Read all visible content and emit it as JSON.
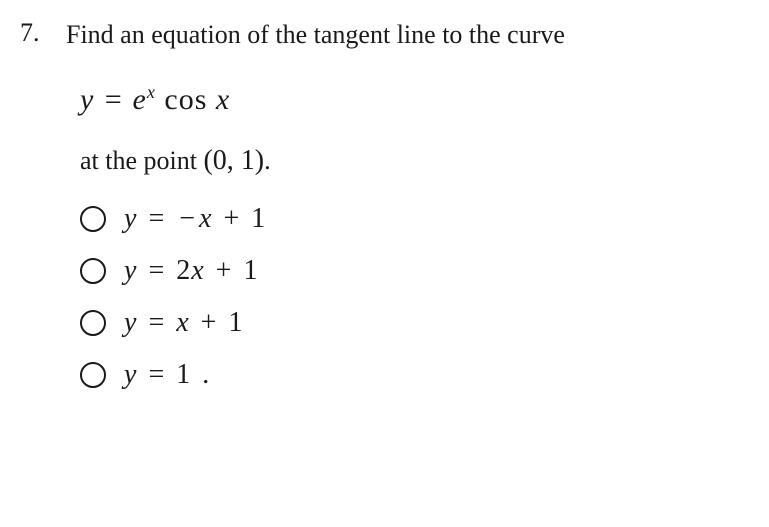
{
  "question": {
    "number": "7.",
    "prompt": "Find an equation of the tangent line to the curve",
    "equation_html": "y = e<span class=\"sup\">x</span> <span class=\"normal\">cos</span> x",
    "at_point_prefix": "at the point ",
    "point": "(0, 1)",
    "at_point_suffix": "."
  },
  "options": [
    {
      "html": "y <span class=\"op\">=</span> <span class=\"op\">&minus;</span>x <span class=\"op\">+</span> <span class=\"num\">1</span>"
    },
    {
      "html": "y <span class=\"op\">=</span> <span class=\"num\">2</span>x <span class=\"op\">+</span> <span class=\"num\">1</span>"
    },
    {
      "html": "y <span class=\"op\">=</span> x <span class=\"op\">+</span> <span class=\"num\">1</span>"
    },
    {
      "html": "y <span class=\"op\">=</span> <span class=\"num\">1</span> <span class=\"op\">.</span>"
    }
  ],
  "style": {
    "background": "#ffffff",
    "text_color": "#1a1a1a",
    "question_fontsize": 26,
    "equation_fontsize": 30,
    "option_fontsize": 28,
    "radio_border": "#1a1a1a",
    "radio_size": 26
  }
}
